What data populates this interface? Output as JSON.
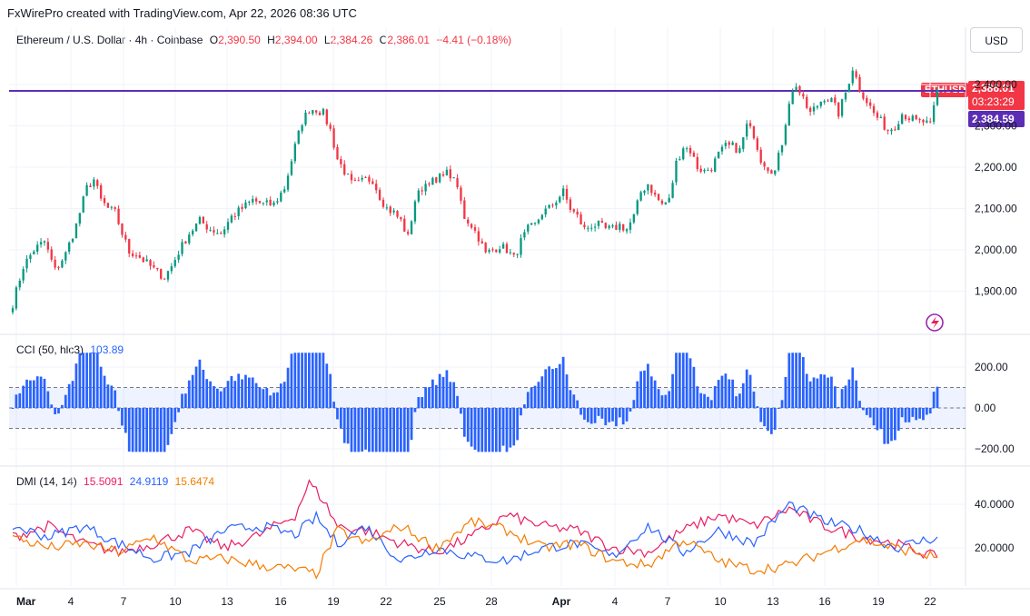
{
  "caption": "FxWirePro created with TradingView.com, Apr 22, 2026 08:36 UTC",
  "currency_button": "USD",
  "legend_main": {
    "symbol": "Ethereum / U.S. Dollar · 4h · Coinbase",
    "o_label": "O",
    "o": "2,390.50",
    "h_label": "H",
    "h": "2,394.00",
    "l_label": "L",
    "l": "2,384.26",
    "c_label": "C",
    "c": "2,386.01",
    "change": "−4.41 (−0.18%)"
  },
  "legend_cci": {
    "label": "CCI (50, hlc3)",
    "value": "103.89"
  },
  "legend_dmi": {
    "label": "DMI (14, 14)",
    "v1": "15.5091",
    "v2": "24.9119",
    "v3": "15.6474"
  },
  "price_tags": {
    "symbol": "ETHUSD",
    "last": "2,386.01",
    "countdown": "03:23:29",
    "line_level": "2,384.59"
  },
  "colors": {
    "up": "#089981",
    "down": "#f23645",
    "cci": "#2962ff",
    "dmi_plus": "#2962ff",
    "dmi_minus": "#e91e63",
    "adx": "#f57c00",
    "level_line": "#5b2db5"
  },
  "chart_data": [
    {
      "type": "candlestick",
      "title": "Ethereum / U.S. Dollar · 4h · Coinbase",
      "y_ticks": [
        "2,400.00",
        "2,300.00",
        "2,200.00",
        "2,100.00",
        "2,000.00",
        "1,900.00"
      ],
      "y_tick_values": [
        2400,
        2300,
        2200,
        2100,
        2000,
        1900
      ],
      "ylim": [
        1830,
        2430
      ],
      "x_ticks": [
        "Mar",
        "4",
        "7",
        "10",
        "13",
        "16",
        "19",
        "22",
        "25",
        "28",
        "Apr",
        "4",
        "7",
        "10",
        "13",
        "16",
        "19",
        "22"
      ],
      "horizontal_level": 2384.59,
      "last_price": 2386.01,
      "path_anchors": [
        [
          0,
          1870
        ],
        [
          3,
          1960
        ],
        [
          6,
          2000
        ],
        [
          9,
          2020
        ],
        [
          12,
          1950
        ],
        [
          15,
          1990
        ],
        [
          18,
          2060
        ],
        [
          21,
          2150
        ],
        [
          23,
          2170
        ],
        [
          25,
          2120
        ],
        [
          27,
          2100
        ],
        [
          29,
          2090
        ],
        [
          31,
          2040
        ],
        [
          33,
          1995
        ],
        [
          35,
          1990
        ],
        [
          37,
          1975
        ],
        [
          39,
          1960
        ],
        [
          41,
          1945
        ],
        [
          43,
          1935
        ],
        [
          45,
          1960
        ],
        [
          47,
          1995
        ],
        [
          50,
          2040
        ],
        [
          53,
          2070
        ],
        [
          56,
          2050
        ],
        [
          59,
          2040
        ],
        [
          62,
          2080
        ],
        [
          65,
          2100
        ],
        [
          68,
          2120
        ],
        [
          71,
          2110
        ],
        [
          74,
          2110
        ],
        [
          77,
          2150
        ],
        [
          80,
          2250
        ],
        [
          82,
          2310
        ],
        [
          84,
          2340
        ],
        [
          86,
          2340
        ],
        [
          88,
          2330
        ],
        [
          90,
          2290
        ],
        [
          92,
          2220
        ],
        [
          94,
          2190
        ],
        [
          96,
          2160
        ],
        [
          98,
          2160
        ],
        [
          100,
          2170
        ],
        [
          102,
          2170
        ],
        [
          104,
          2130
        ],
        [
          106,
          2100
        ],
        [
          108,
          2090
        ],
        [
          110,
          2070
        ],
        [
          112,
          2030
        ],
        [
          114,
          2120
        ],
        [
          116,
          2150
        ],
        [
          118,
          2170
        ],
        [
          120,
          2160
        ],
        [
          122,
          2190
        ],
        [
          124,
          2180
        ],
        [
          126,
          2150
        ],
        [
          128,
          2080
        ],
        [
          130,
          2060
        ],
        [
          132,
          2030
        ],
        [
          134,
          1990
        ],
        [
          136,
          2000
        ],
        [
          138,
          2010
        ],
        [
          140,
          2000
        ],
        [
          142,
          1980
        ],
        [
          144,
          2020
        ],
        [
          146,
          2050
        ],
        [
          148,
          2060
        ],
        [
          150,
          2090
        ],
        [
          152,
          2100
        ],
        [
          154,
          2120
        ],
        [
          156,
          2140
        ],
        [
          158,
          2100
        ],
        [
          160,
          2080
        ],
        [
          162,
          2050
        ],
        [
          164,
          2060
        ],
        [
          166,
          2060
        ],
        [
          168,
          2050
        ],
        [
          170,
          2050
        ],
        [
          172,
          2060
        ],
        [
          174,
          2050
        ],
        [
          176,
          2080
        ],
        [
          178,
          2140
        ],
        [
          180,
          2160
        ],
        [
          182,
          2130
        ],
        [
          184,
          2110
        ],
        [
          186,
          2120
        ],
        [
          188,
          2210
        ],
        [
          190,
          2250
        ],
        [
          192,
          2240
        ],
        [
          194,
          2200
        ],
        [
          196,
          2190
        ],
        [
          198,
          2200
        ],
        [
          200,
          2230
        ],
        [
          202,
          2250
        ],
        [
          204,
          2250
        ],
        [
          206,
          2240
        ],
        [
          208,
          2300
        ],
        [
          210,
          2280
        ],
        [
          212,
          2220
        ],
        [
          214,
          2200
        ],
        [
          216,
          2190
        ],
        [
          218,
          2260
        ],
        [
          220,
          2360
        ],
        [
          222,
          2400
        ],
        [
          224,
          2360
        ],
        [
          226,
          2330
        ],
        [
          228,
          2350
        ],
        [
          230,
          2370
        ],
        [
          232,
          2360
        ],
        [
          234,
          2330
        ],
        [
          236,
          2380
        ],
        [
          238,
          2440
        ],
        [
          240,
          2390
        ],
        [
          242,
          2360
        ],
        [
          244,
          2330
        ],
        [
          246,
          2310
        ],
        [
          248,
          2290
        ],
        [
          250,
          2300
        ],
        [
          252,
          2330
        ],
        [
          254,
          2320
        ],
        [
          256,
          2310
        ],
        [
          258,
          2310
        ],
        [
          260,
          2300
        ],
        [
          262,
          2386
        ]
      ]
    },
    {
      "type": "bar",
      "title": "CCI (50, hlc3)",
      "y_ticks": [
        "200.00",
        "0.00",
        "−200.00"
      ],
      "y_tick_values": [
        200,
        0,
        -200
      ],
      "ylim": [
        -230,
        280
      ],
      "band": [
        -100,
        100
      ],
      "last_value": 103.89
    },
    {
      "type": "line",
      "title": "DMI (14, 14)",
      "y_ticks": [
        "40.0000",
        "20.0000"
      ],
      "y_tick_values": [
        40,
        20
      ],
      "ylim": [
        5,
        52
      ],
      "series": [
        {
          "name": "",
          "last": 15.5091,
          "anchors": [
            [
              0,
              25
            ],
            [
              10,
              30
            ],
            [
              20,
              22
            ],
            [
              30,
              18
            ],
            [
              40,
              22
            ],
            [
              50,
              28
            ],
            [
              60,
              20
            ],
            [
              70,
              26
            ],
            [
              80,
              35
            ],
            [
              84,
              50
            ],
            [
              88,
              42
            ],
            [
              92,
              30
            ],
            [
              100,
              28
            ],
            [
              110,
              22
            ],
            [
              120,
              18
            ],
            [
              130,
              25
            ],
            [
              140,
              35
            ],
            [
              150,
              30
            ],
            [
              160,
              28
            ],
            [
              170,
              20
            ],
            [
              180,
              18
            ],
            [
              190,
              28
            ],
            [
              200,
              35
            ],
            [
              210,
              30
            ],
            [
              220,
              38
            ],
            [
              230,
              30
            ],
            [
              240,
              25
            ],
            [
              250,
              22
            ],
            [
              262,
              15.5
            ]
          ]
        },
        {
          "name": "",
          "last": 24.9119,
          "anchors": [
            [
              0,
              30
            ],
            [
              10,
              25
            ],
            [
              20,
              30
            ],
            [
              30,
              22
            ],
            [
              40,
              15
            ],
            [
              50,
              18
            ],
            [
              60,
              28
            ],
            [
              70,
              30
            ],
            [
              80,
              26
            ],
            [
              86,
              34
            ],
            [
              92,
              22
            ],
            [
              100,
              30
            ],
            [
              110,
              14
            ],
            [
              120,
              20
            ],
            [
              130,
              16
            ],
            [
              140,
              14
            ],
            [
              150,
              20
            ],
            [
              160,
              22
            ],
            [
              170,
              16
            ],
            [
              180,
              30
            ],
            [
              190,
              18
            ],
            [
              200,
              28
            ],
            [
              210,
              22
            ],
            [
              220,
              40
            ],
            [
              230,
              32
            ],
            [
              240,
              28
            ],
            [
              250,
              20
            ],
            [
              262,
              25
            ]
          ]
        },
        {
          "name": "",
          "last": 15.6474,
          "anchors": [
            [
              0,
              25
            ],
            [
              10,
              20
            ],
            [
              20,
              22
            ],
            [
              30,
              18
            ],
            [
              40,
              25
            ],
            [
              50,
              14
            ],
            [
              60,
              15
            ],
            [
              70,
              12
            ],
            [
              80,
              10
            ],
            [
              86,
              8
            ],
            [
              92,
              28
            ],
            [
              100,
              22
            ],
            [
              110,
              30
            ],
            [
              120,
              20
            ],
            [
              130,
              32
            ],
            [
              140,
              28
            ],
            [
              150,
              20
            ],
            [
              160,
              22
            ],
            [
              170,
              14
            ],
            [
              180,
              12
            ],
            [
              190,
              24
            ],
            [
              200,
              14
            ],
            [
              210,
              10
            ],
            [
              220,
              12
            ],
            [
              230,
              18
            ],
            [
              240,
              24
            ],
            [
              250,
              20
            ],
            [
              262,
              15.6
            ]
          ]
        }
      ]
    }
  ]
}
